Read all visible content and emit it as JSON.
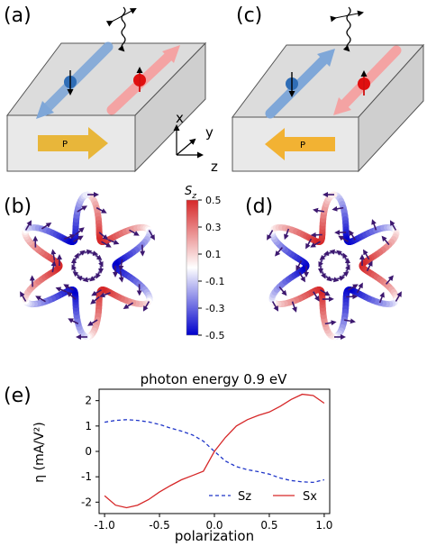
{
  "panels": {
    "a": "(a)",
    "b": "(b)",
    "c": "(c)",
    "d": "(d)",
    "e": "(e)"
  },
  "slab_arrow_label": "P",
  "axes_labels": {
    "x": "x",
    "y": "y",
    "z": "z"
  },
  "colorbar": {
    "label": "S",
    "label_sub": "z",
    "ticks": [
      "0.5",
      "0.3",
      "0.1",
      "-0.1",
      "-0.3",
      "-0.5"
    ],
    "range": [
      -0.5,
      0.5
    ],
    "colors": {
      "high": "#d62728",
      "mid": "#ffffff",
      "low": "#0000cc"
    }
  },
  "colors": {
    "slab_face": "#e9e9e9",
    "slab_top": "#dcdcdc",
    "blue_band": "#7fa7d8",
    "red_band": "#f4a3a3",
    "current_arrow": "#e8b63a",
    "vector_arrow": "#3d1870",
    "spin_up": "#e01010",
    "spin_down": "#2f6db6"
  },
  "chart_data": {
    "type": "line",
    "title": "photon energy 0.9 eV",
    "xlabel": "polarization",
    "ylabel": "η (mA/V²)",
    "xlim": [
      -1.05,
      1.05
    ],
    "ylim": [
      -2.45,
      2.45
    ],
    "x_ticks": [
      "-1.0",
      "-0.5",
      "0.0",
      "0.5",
      "1.0"
    ],
    "y_ticks": [
      "2",
      "1",
      "0",
      "-1",
      "-2"
    ],
    "legend_position": "lower-right",
    "series": [
      {
        "name": "Sz",
        "style": "dashed",
        "color": "#1f35c8",
        "x": [
          -1.0,
          -0.9,
          -0.8,
          -0.7,
          -0.6,
          -0.5,
          -0.4,
          -0.3,
          -0.2,
          -0.1,
          0.0,
          0.1,
          0.2,
          0.3,
          0.4,
          0.5,
          0.6,
          0.7,
          0.8,
          0.9,
          1.0
        ],
        "y": [
          1.15,
          1.22,
          1.25,
          1.22,
          1.16,
          1.06,
          0.92,
          0.8,
          0.65,
          0.4,
          0.0,
          -0.38,
          -0.6,
          -0.72,
          -0.8,
          -0.9,
          -1.05,
          -1.15,
          -1.2,
          -1.22,
          -1.12
        ]
      },
      {
        "name": "Sx",
        "style": "solid",
        "color": "#d62728",
        "x": [
          -1.0,
          -0.9,
          -0.8,
          -0.7,
          -0.6,
          -0.5,
          -0.4,
          -0.3,
          -0.2,
          -0.1,
          0.0,
          0.1,
          0.2,
          0.3,
          0.4,
          0.5,
          0.6,
          0.7,
          0.8,
          0.9,
          1.0
        ],
        "y": [
          -1.75,
          -2.12,
          -2.22,
          -2.12,
          -1.9,
          -1.6,
          -1.35,
          -1.12,
          -0.95,
          -0.78,
          0.0,
          0.55,
          1.0,
          1.25,
          1.42,
          1.55,
          1.78,
          2.05,
          2.25,
          2.2,
          1.9
        ]
      }
    ]
  }
}
